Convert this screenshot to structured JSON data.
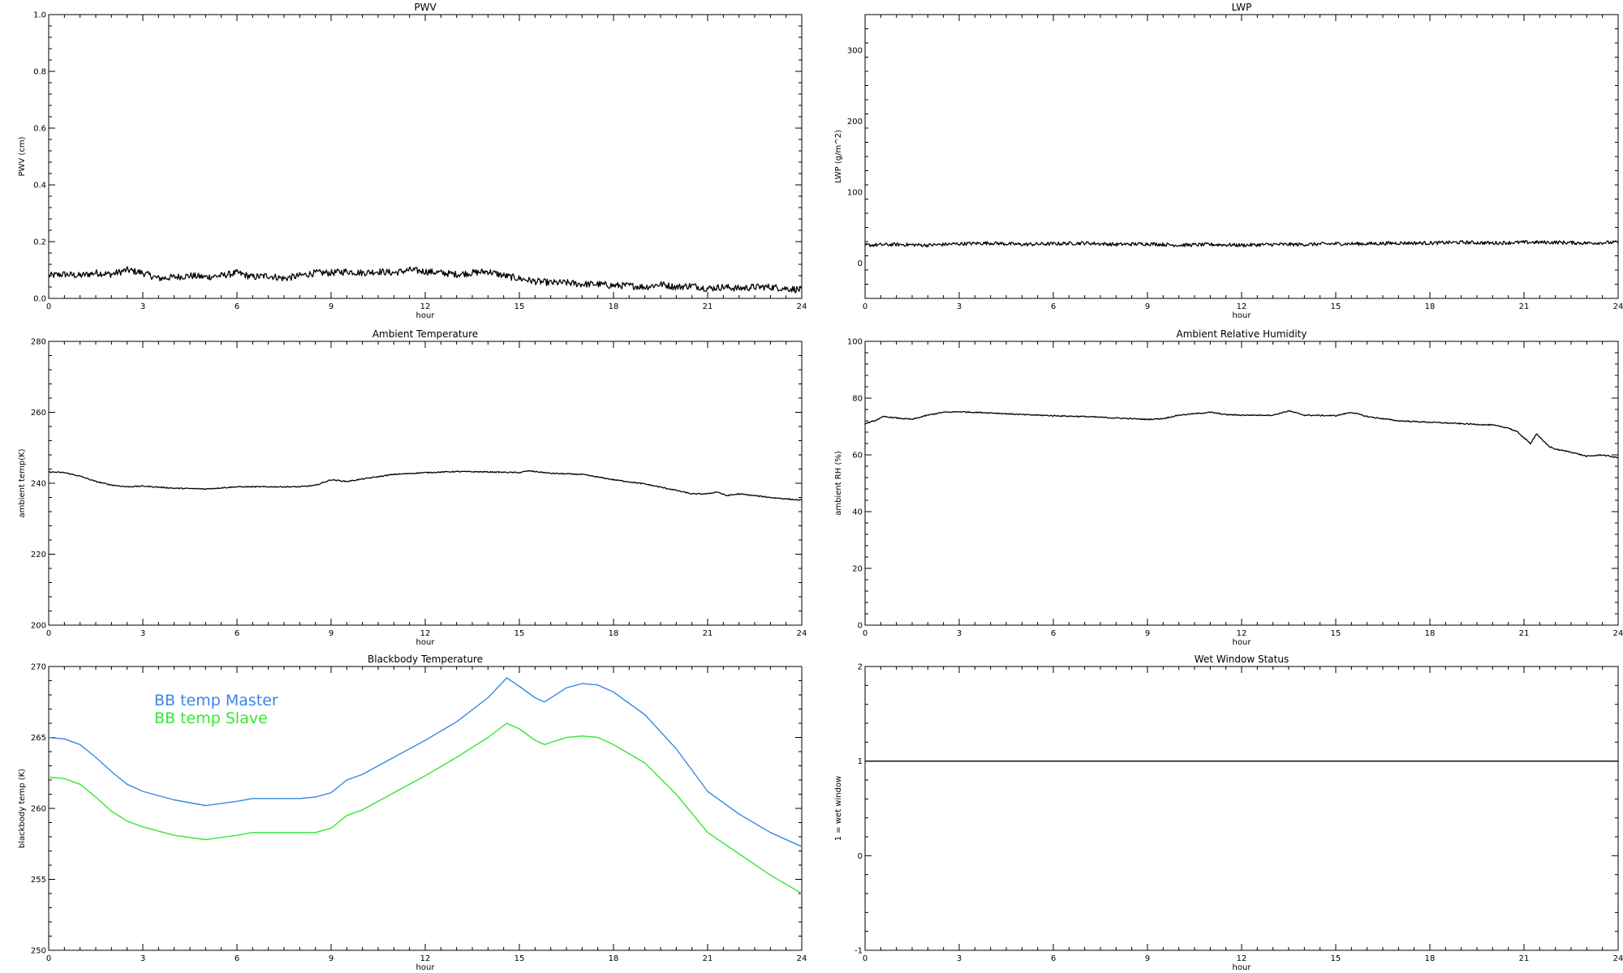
{
  "chart_data": [
    {
      "type": "line",
      "title": "PWV",
      "xlabel": "hour",
      "ylabel": "PWV (cm)",
      "xlim": [
        0,
        24
      ],
      "ylim": [
        0,
        1.0
      ],
      "xticks": [
        0,
        3,
        6,
        9,
        12,
        15,
        18,
        21,
        24
      ],
      "yticks": [
        0.0,
        0.2,
        0.4,
        0.6,
        0.8,
        1.0
      ],
      "ytick_labels": [
        "0.0",
        "0.2",
        "0.4",
        "0.6",
        "0.8",
        "1.0"
      ],
      "noise": 0.012,
      "series": [
        {
          "color": "#000000",
          "x": [
            0,
            0.5,
            1,
            1.5,
            2,
            2.5,
            3,
            3.5,
            4,
            4.5,
            5,
            5.5,
            6,
            6.5,
            7,
            7.5,
            8,
            8.5,
            9,
            9.5,
            10,
            10.5,
            11,
            11.5,
            12,
            12.5,
            13,
            13.5,
            14,
            14.5,
            15,
            15.5,
            16,
            16.5,
            17,
            17.5,
            18,
            18.5,
            19,
            19.5,
            20,
            20.5,
            21,
            21.5,
            22,
            22.5,
            23,
            23.5,
            24
          ],
          "y": [
            0.08,
            0.085,
            0.08,
            0.09,
            0.085,
            0.1,
            0.09,
            0.07,
            0.075,
            0.08,
            0.075,
            0.08,
            0.09,
            0.075,
            0.08,
            0.07,
            0.08,
            0.09,
            0.09,
            0.095,
            0.09,
            0.095,
            0.09,
            0.1,
            0.095,
            0.09,
            0.085,
            0.09,
            0.095,
            0.08,
            0.07,
            0.06,
            0.055,
            0.055,
            0.05,
            0.05,
            0.045,
            0.045,
            0.04,
            0.05,
            0.04,
            0.045,
            0.035,
            0.04,
            0.035,
            0.04,
            0.04,
            0.035,
            0.03
          ]
        }
      ]
    },
    {
      "type": "line",
      "title": "LWP",
      "xlabel": "hour",
      "ylabel": "LWP (g/m^2)",
      "xlim": [
        0,
        24
      ],
      "ylim": [
        -50,
        350
      ],
      "xticks": [
        0,
        3,
        6,
        9,
        12,
        15,
        18,
        21,
        24
      ],
      "yticks": [
        0,
        100,
        200,
        300
      ],
      "ytick_labels": [
        "0",
        "100",
        "200",
        "300"
      ],
      "noise": 2.5,
      "series": [
        {
          "color": "#000000",
          "x": [
            0,
            1,
            2,
            3,
            4,
            5,
            6,
            7,
            8,
            9,
            10,
            11,
            12,
            13,
            14,
            15,
            16,
            17,
            18,
            19,
            20,
            21,
            22,
            23,
            24
          ],
          "y": [
            25,
            26,
            25,
            27,
            28,
            26,
            27,
            28,
            26,
            27,
            25,
            26,
            25,
            26,
            26,
            27,
            27,
            28,
            28,
            29,
            28,
            29,
            29,
            28,
            29
          ]
        }
      ]
    },
    {
      "type": "line",
      "title": "Ambient Temperature",
      "xlabel": "hour",
      "ylabel": "ambient temp(K)",
      "xlim": [
        0,
        24
      ],
      "ylim": [
        200,
        280
      ],
      "xticks": [
        0,
        3,
        6,
        9,
        12,
        15,
        18,
        21,
        24
      ],
      "yticks": [
        200,
        220,
        240,
        260,
        280
      ],
      "ytick_labels": [
        "200",
        "220",
        "240",
        "260",
        "280"
      ],
      "noise": 0.15,
      "series": [
        {
          "color": "#000000",
          "x": [
            0,
            0.5,
            1,
            1.5,
            2,
            2.5,
            3,
            4,
            5,
            6,
            7,
            8,
            8.5,
            9,
            9.5,
            10,
            11,
            12,
            13,
            14,
            15,
            15.3,
            16,
            17,
            18,
            19,
            20,
            20.5,
            21,
            21.3,
            21.6,
            22,
            23,
            24
          ],
          "y": [
            243.2,
            243,
            242,
            240.5,
            239.5,
            239,
            239.2,
            238.6,
            238.4,
            239,
            239,
            239,
            239.4,
            241,
            240.5,
            241.2,
            242.5,
            243,
            243.3,
            243.2,
            243,
            243.5,
            242.8,
            242.5,
            241,
            239.8,
            238,
            237,
            237,
            237.6,
            236.5,
            237,
            236,
            235.2
          ]
        }
      ]
    },
    {
      "type": "line",
      "title": "Ambient Relative Humidity",
      "xlabel": "hour",
      "ylabel": "ambient RH (%)",
      "xlim": [
        0,
        24
      ],
      "ylim": [
        0,
        100
      ],
      "xticks": [
        0,
        3,
        6,
        9,
        12,
        15,
        18,
        21,
        24
      ],
      "yticks": [
        0,
        20,
        40,
        60,
        80,
        100
      ],
      "ytick_labels": [
        "0",
        "20",
        "40",
        "60",
        "80",
        "100"
      ],
      "noise": 0.2,
      "series": [
        {
          "color": "#000000",
          "x": [
            0,
            0.3,
            0.6,
            1,
            1.5,
            2,
            2.5,
            3,
            4,
            5,
            6,
            7,
            8,
            9,
            9.5,
            10,
            10.5,
            11,
            11.5,
            12,
            13,
            13.5,
            14,
            15,
            15.5,
            16,
            17,
            18,
            19,
            20,
            20.5,
            20.8,
            21,
            21.2,
            21.4,
            21.6,
            21.8,
            22,
            22.5,
            23,
            23.5,
            24
          ],
          "y": [
            71,
            72,
            73.5,
            73,
            72.5,
            74,
            75,
            75.2,
            74.8,
            74.2,
            73.8,
            73.5,
            73,
            72.5,
            72.8,
            74,
            74.5,
            75,
            74.2,
            74,
            74,
            75.5,
            74,
            73.8,
            75,
            73.5,
            72,
            71.5,
            71,
            70.5,
            69.5,
            68,
            66,
            64,
            67.5,
            65,
            63,
            62,
            61,
            59.5,
            60,
            59
          ]
        }
      ]
    },
    {
      "type": "line",
      "title": "Blackbody Temperature",
      "xlabel": "hour",
      "ylabel": "blackbody temp (K)",
      "xlim": [
        0,
        24
      ],
      "ylim": [
        250,
        270
      ],
      "xticks": [
        0,
        3,
        6,
        9,
        12,
        15,
        18,
        21,
        24
      ],
      "yticks": [
        250,
        255,
        260,
        265,
        270
      ],
      "ytick_labels": [
        "250",
        "255",
        "260",
        "265",
        "270"
      ],
      "noise": 0,
      "series": [
        {
          "name": "BB temp Master",
          "color": "#3a86e8",
          "x": [
            0,
            0.5,
            1,
            1.5,
            2,
            2.5,
            3,
            4,
            5,
            6,
            6.5,
            7,
            8,
            8.5,
            9,
            9.5,
            10,
            11,
            12,
            13,
            14,
            14.3,
            14.6,
            15,
            15.5,
            15.8,
            16.5,
            17,
            17.5,
            18,
            19,
            20,
            21,
            22,
            23,
            24
          ],
          "y": [
            265,
            264.9,
            264.5,
            263.6,
            262.6,
            261.7,
            261.2,
            260.6,
            260.2,
            260.5,
            260.7,
            260.7,
            260.7,
            260.8,
            261.1,
            262,
            262.4,
            263.6,
            264.8,
            266.1,
            267.8,
            268.5,
            269.2,
            268.6,
            267.8,
            267.5,
            268.5,
            268.8,
            268.7,
            268.2,
            266.6,
            264.2,
            261.2,
            259.6,
            258.3,
            257.3
          ]
        },
        {
          "name": "BB temp Slave",
          "color": "#33e833",
          "x": [
            0,
            0.5,
            1,
            1.5,
            2,
            2.5,
            3,
            4,
            5,
            6,
            6.5,
            7,
            8,
            8.5,
            9,
            9.5,
            10,
            11,
            12,
            13,
            14,
            14.3,
            14.6,
            15,
            15.5,
            15.8,
            16.5,
            17,
            17.5,
            18,
            19,
            20,
            21,
            22,
            23,
            24
          ],
          "y": [
            262.2,
            262.1,
            261.7,
            260.8,
            259.8,
            259.1,
            258.7,
            258.1,
            257.8,
            258.1,
            258.3,
            258.3,
            258.3,
            258.3,
            258.6,
            259.5,
            259.9,
            261.1,
            262.3,
            263.6,
            265,
            265.5,
            266,
            265.6,
            264.8,
            264.5,
            265,
            265.1,
            265,
            264.5,
            263.2,
            261,
            258.3,
            256.8,
            255.3,
            254
          ]
        }
      ]
    },
    {
      "type": "line",
      "title": "Wet Window Status",
      "xlabel": "hour",
      "ylabel": "1 = wet window",
      "xlim": [
        0,
        24
      ],
      "ylim": [
        -1,
        2
      ],
      "xticks": [
        0,
        3,
        6,
        9,
        12,
        15,
        18,
        21,
        24
      ],
      "yticks": [
        -1,
        0,
        1,
        2
      ],
      "ytick_labels": [
        "-1",
        "0",
        "1",
        "2"
      ],
      "noise": 0,
      "series": [
        {
          "color": "#000000",
          "x": [
            0,
            24
          ],
          "y": [
            1,
            1
          ]
        }
      ]
    }
  ]
}
